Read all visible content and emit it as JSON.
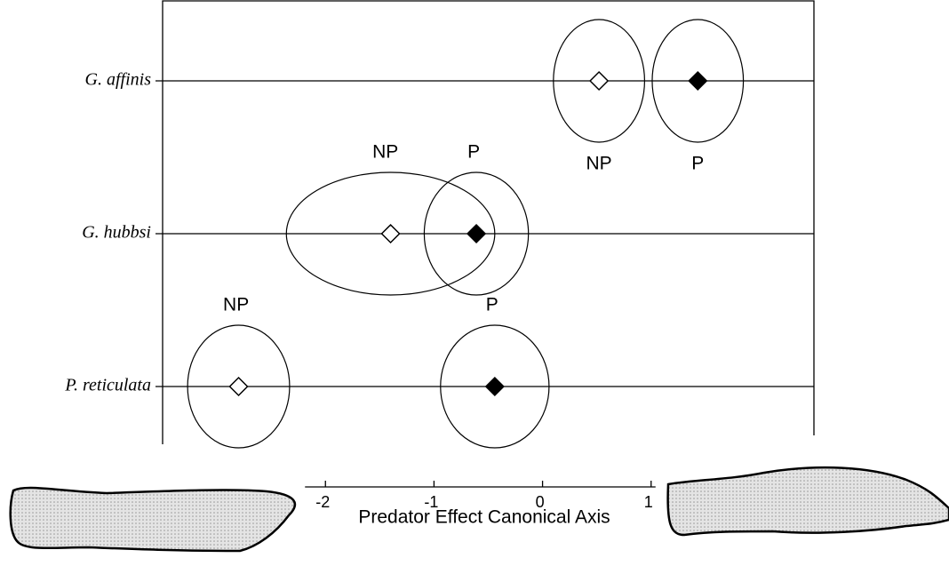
{
  "chart_data": {
    "type": "scatter",
    "xlabel": "Predator Effect Canonical Axis",
    "xlim": [
      -3.5,
      2.5
    ],
    "xticks": [
      -2,
      -1,
      0,
      1
    ],
    "categories": [
      "G. affinis",
      "G. hubbsi",
      "P. reticulata"
    ],
    "series": [
      {
        "name": "NP",
        "color": "#ffffff",
        "x": [
          0.52,
          -1.4,
          -2.8
        ],
        "x_radius": [
          0.42,
          0.96,
          0.47
        ]
      },
      {
        "name": "P",
        "color": "#000000",
        "x": [
          1.43,
          -0.61,
          -0.44
        ],
        "x_radius": [
          0.42,
          0.48,
          0.5
        ]
      }
    ]
  }
}
